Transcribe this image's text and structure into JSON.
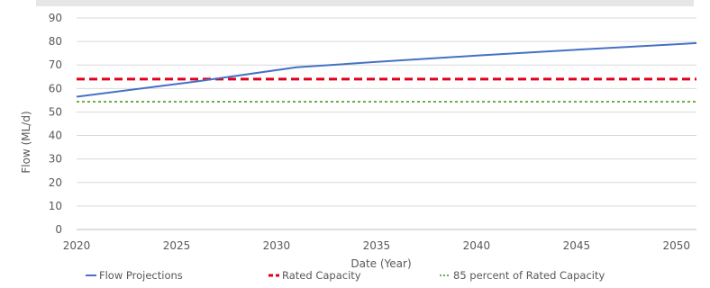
{
  "chart_data": {
    "type": "line",
    "title": "",
    "xlabel": "Date (Year)",
    "ylabel": "Flow (ML/d)",
    "xlim": [
      2020,
      2051
    ],
    "ylim": [
      0,
      90
    ],
    "x_ticks": [
      "2020",
      "2025",
      "2030",
      "2035",
      "2040",
      "2045",
      "2050"
    ],
    "y_ticks": [
      "0",
      "10",
      "20",
      "30",
      "40",
      "50",
      "60",
      "70",
      "80",
      "90"
    ],
    "grid": "horizontal",
    "legend_position": "bottom",
    "series": [
      {
        "name": "Flow Projections",
        "style": "solid",
        "color": "#4472C4",
        "x": [
          2020,
          2026,
          2031,
          2035,
          2040,
          2045,
          2051
        ],
        "y": [
          56.5,
          63,
          69,
          71.3,
          74,
          76.5,
          79.3
        ]
      },
      {
        "name": "Rated Capacity",
        "style": "dashed",
        "color": "#E0001B",
        "x": [
          2020,
          2051
        ],
        "y": [
          64,
          64
        ]
      },
      {
        "name": "85 percent of Rated Capacity",
        "style": "dotted",
        "color": "#70AD47",
        "x": [
          2020,
          2051
        ],
        "y": [
          54.4,
          54.4
        ]
      }
    ]
  }
}
